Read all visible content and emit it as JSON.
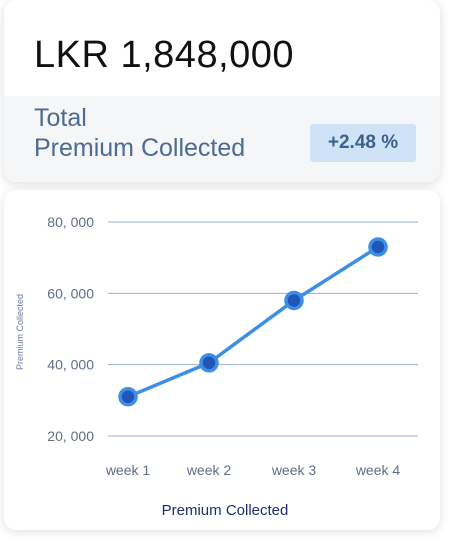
{
  "summary": {
    "amount": "LKR 1,848,000",
    "label_line1": "Total",
    "label_line2": "Premium Collected",
    "change": "+2.48 %"
  },
  "colors": {
    "line": "#3d8fe6",
    "marker_fill": "#2255b8",
    "marker_ring": "#3d8fe6",
    "grid": "#9ab0ca",
    "badge_bg": "#cfe3f7"
  },
  "chart_data": {
    "type": "line",
    "categories": [
      "week 1",
      "week 2",
      "week 3",
      "week 4"
    ],
    "series": [
      {
        "values": [
          31000,
          40500,
          58000,
          73000
        ]
      }
    ],
    "yticks": [
      20000,
      40000,
      60000,
      80000
    ],
    "ytick_labels": [
      "20, 000",
      "40, 000",
      "60, 000",
      "80, 000"
    ],
    "xlabel": "Premium Collected",
    "ylabel": "Premium Collected",
    "grid": true,
    "legend": "none"
  }
}
